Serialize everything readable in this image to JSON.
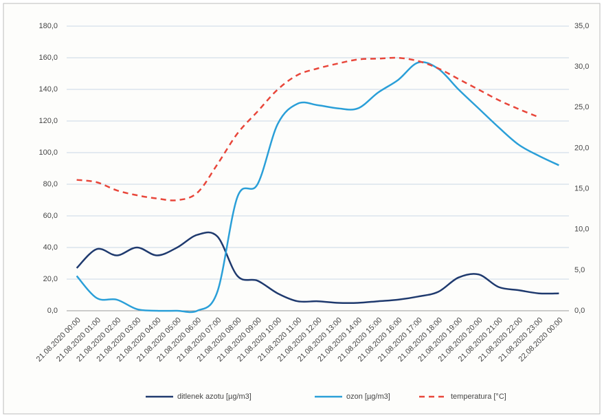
{
  "chart_data": {
    "type": "line",
    "categories": [
      "21.08.2020 00:00",
      "21.08.2020 01:00",
      "21.08.2020 02:00",
      "21.08.2020 03:00",
      "21.08.2020 04:00",
      "21.08.2020 05:00",
      "21.08.2020 06:00",
      "21.08.2020 07:00",
      "21.08.2020 08:00",
      "21.08.2020 09:00",
      "21.08.2020 10:00",
      "21.08.2020 11:00",
      "21.08.2020 12:00",
      "21.08.2020 13:00",
      "21.08.2020 14:00",
      "21.08.2020 15:00",
      "21.08.2020 16:00",
      "21.08.2020 17:00",
      "21.08.2020 18:00",
      "21.08.2020 19:00",
      "21.08.2020 20:00",
      "21.08.2020 21:00",
      "21.08.2020 22:00",
      "21.08.2020 23:00",
      "22.08.2020 00:00"
    ],
    "series": [
      {
        "name": "ditlenek azotu [µg/m3]",
        "color": "#1f3a6e",
        "values": [
          27,
          39,
          35,
          40,
          35,
          40,
          48,
          47,
          22,
          19,
          11,
          6,
          6,
          5,
          5,
          6,
          7,
          9,
          12,
          21,
          23,
          15,
          13,
          11,
          11
        ]
      },
      {
        "name": "ozon [µg/m3]",
        "color": "#2a9fd8",
        "values": [
          22,
          8,
          7,
          1,
          0,
          0,
          0,
          12,
          72,
          80,
          118,
          131,
          130,
          128,
          128,
          138,
          146,
          157,
          153,
          140,
          128,
          116,
          105,
          98,
          92
        ]
      },
      {
        "name": "temperatura [°C]",
        "color": "#e8463a",
        "dashed": true,
        "axis": "y2",
        "values": [
          16.1,
          15.8,
          14.8,
          14.2,
          13.8,
          13.6,
          14.5,
          18,
          21.8,
          24.5,
          27.2,
          29,
          29.8,
          30.4,
          30.9,
          31,
          31.1,
          30.7,
          29.8,
          28.5,
          27.2,
          25.9,
          24.8,
          23.8,
          null
        ]
      }
    ],
    "ylim": [
      0,
      180
    ],
    "yticks": [
      {
        "value": 0,
        "label": "0,0"
      },
      {
        "value": 20,
        "label": "20,0"
      },
      {
        "value": 40,
        "label": "40,0"
      },
      {
        "value": 60,
        "label": "60,0"
      },
      {
        "value": 80,
        "label": "80,0"
      },
      {
        "value": 100,
        "label": "100,0"
      },
      {
        "value": 120,
        "label": "120,0"
      },
      {
        "value": 140,
        "label": "140,0"
      },
      {
        "value": 160,
        "label": "160,0"
      },
      {
        "value": 180,
        "label": "180,0"
      }
    ],
    "y2lim": [
      0,
      35
    ],
    "y2ticks": [
      {
        "value": 0,
        "label": "0,0"
      },
      {
        "value": 5,
        "label": "5,0"
      },
      {
        "value": 10,
        "label": "10,0"
      },
      {
        "value": 15,
        "label": "15,0"
      },
      {
        "value": 20,
        "label": "20,0"
      },
      {
        "value": 25,
        "label": "25,0"
      },
      {
        "value": 30,
        "label": "30,0"
      },
      {
        "value": 35,
        "label": "35,0"
      }
    ],
    "grid": true,
    "legend": "bottom"
  }
}
